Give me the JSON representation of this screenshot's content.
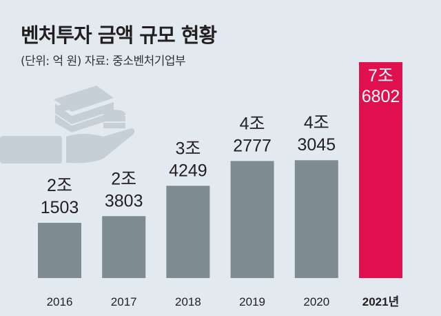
{
  "chart_data": {
    "type": "bar",
    "title": "벤처투자 금액 규모 현황",
    "subtitle": "(단위: 억 원) 자료: 중소벤처기업부",
    "unit": "억 원",
    "categories": [
      "2016",
      "2017",
      "2018",
      "2019",
      "2020",
      "2021년"
    ],
    "values": [
      21503,
      23803,
      34249,
      42777,
      43045,
      76802
    ],
    "data_labels": [
      [
        "2조",
        "1503"
      ],
      [
        "2조",
        "3803"
      ],
      [
        "3조",
        "4249"
      ],
      [
        "4조",
        "2777"
      ],
      [
        "4조",
        "3045"
      ],
      [
        "7조",
        "6802"
      ]
    ],
    "highlight_index": 5,
    "ylim": [
      2500,
      78000
    ],
    "grid": false,
    "colors": {
      "bar": "#7e8b92",
      "highlight": "#e0104f",
      "icon": "#c6cfd6"
    }
  }
}
